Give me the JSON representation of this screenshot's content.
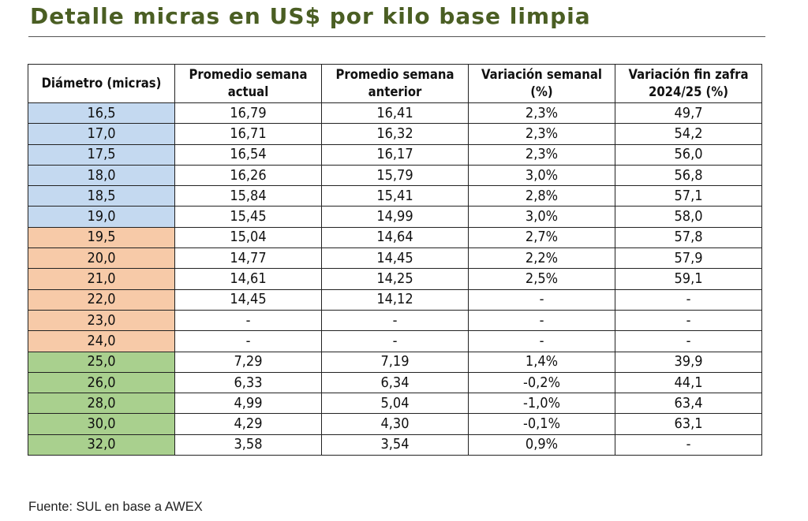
{
  "title": "Detalle micras en US$ por kilo base limpia",
  "source": "Fuente: SUL en base a AWEX",
  "colors": {
    "title": "#4a5e23",
    "group_fine": "#c4d9f0",
    "group_medium": "#f7caa8",
    "group_coarse": "#a9d08e"
  },
  "chart_data": {
    "type": "table",
    "columns": [
      "Diámetro (micras)",
      "Promedio semana actual",
      "Promedio semana anterior",
      "Variación semanal (%)",
      "Variación fin zafra 2024/25 (%)"
    ],
    "header_lines": [
      [
        "Diámetro (micras)"
      ],
      [
        "Promedio semana",
        "actual"
      ],
      [
        "Promedio semana",
        "anterior"
      ],
      [
        "Variación semanal",
        "(%)"
      ],
      [
        "Variación fin zafra",
        "2024/25 (%)"
      ]
    ],
    "rows": [
      {
        "cells": [
          "16,5",
          "16,79",
          "16,41",
          "2,3%",
          "49,7"
        ],
        "group": "blue"
      },
      {
        "cells": [
          "17,0",
          "16,71",
          "16,32",
          "2,3%",
          "54,2"
        ],
        "group": "blue"
      },
      {
        "cells": [
          "17,5",
          "16,54",
          "16,17",
          "2,3%",
          "56,0"
        ],
        "group": "blue"
      },
      {
        "cells": [
          "18,0",
          "16,26",
          "15,79",
          "3,0%",
          "56,8"
        ],
        "group": "blue"
      },
      {
        "cells": [
          "18,5",
          "15,84",
          "15,41",
          "2,8%",
          "57,1"
        ],
        "group": "blue"
      },
      {
        "cells": [
          "19,0",
          "15,45",
          "14,99",
          "3,0%",
          "58,0"
        ],
        "group": "blue"
      },
      {
        "cells": [
          "19,5",
          "15,04",
          "14,64",
          "2,7%",
          "57,8"
        ],
        "group": "orange"
      },
      {
        "cells": [
          "20,0",
          "14,77",
          "14,45",
          "2,2%",
          "57,9"
        ],
        "group": "orange"
      },
      {
        "cells": [
          "21,0",
          "14,61",
          "14,25",
          "2,5%",
          "59,1"
        ],
        "group": "orange"
      },
      {
        "cells": [
          "22,0",
          "14,45",
          "14,12",
          "-",
          "-"
        ],
        "group": "orange"
      },
      {
        "cells": [
          "23,0",
          "-",
          "-",
          "-",
          "-"
        ],
        "group": "orange"
      },
      {
        "cells": [
          "24,0",
          "-",
          "-",
          "-",
          "-"
        ],
        "group": "orange"
      },
      {
        "cells": [
          "25,0",
          "7,29",
          "7,19",
          "1,4%",
          "39,9"
        ],
        "group": "green"
      },
      {
        "cells": [
          "26,0",
          "6,33",
          "6,34",
          "-0,2%",
          "44,1"
        ],
        "group": "green"
      },
      {
        "cells": [
          "28,0",
          "4,99",
          "5,04",
          "-1,0%",
          "63,4"
        ],
        "group": "green"
      },
      {
        "cells": [
          "30,0",
          "4,29",
          "4,30",
          "-0,1%",
          "63,1"
        ],
        "group": "green"
      },
      {
        "cells": [
          "32,0",
          "3,58",
          "3,54",
          "0,9%",
          "-"
        ],
        "group": "green"
      }
    ]
  }
}
